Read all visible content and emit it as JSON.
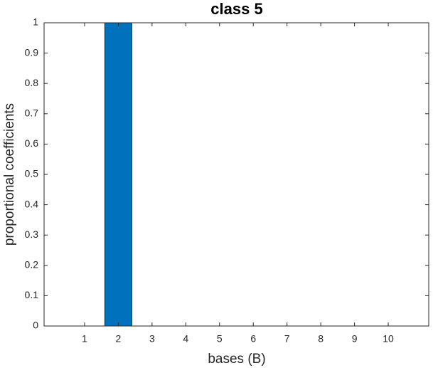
{
  "chart_data": {
    "type": "bar",
    "title": "class 5",
    "xlabel": "bases (B)",
    "ylabel": "proportional coefficients",
    "x": [
      1,
      2,
      3,
      4,
      5,
      6,
      7,
      8,
      9,
      10
    ],
    "values": [
      0,
      1,
      0,
      0,
      0,
      0,
      0,
      0,
      0,
      0
    ],
    "color": "#0072bd",
    "bar_width": 0.8,
    "xlim": [
      -0.2,
      11.2
    ],
    "xticks": [
      1,
      2,
      3,
      4,
      5,
      6,
      7,
      8,
      9,
      10
    ],
    "ylim": [
      0,
      1
    ],
    "yticks": [
      0,
      0.1,
      0.2,
      0.3,
      0.4,
      0.5,
      0.6,
      0.7,
      0.8,
      0.9,
      1
    ],
    "grid": false
  }
}
